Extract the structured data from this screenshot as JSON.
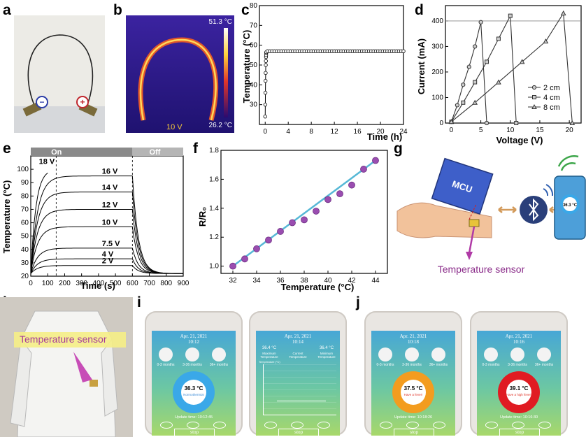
{
  "labels": {
    "a": "a",
    "b": "b",
    "c": "c",
    "d": "d",
    "e": "e",
    "f": "f",
    "g": "g",
    "h": "h",
    "i": "i",
    "j": "j"
  },
  "panel_a": {
    "minus": "−",
    "plus": "+"
  },
  "panel_b": {
    "max_temp": "51.3 °C",
    "min_temp": "26.2 °C",
    "voltage": "10 V"
  },
  "chart_c": {
    "type": "line",
    "xlabel": "Time (h)",
    "ylabel": "Temperature (°C)",
    "xlim": [
      -1,
      24
    ],
    "ylim": [
      20,
      80
    ],
    "xticks": [
      "0",
      "4",
      "8",
      "12",
      "16",
      "20",
      "24"
    ],
    "yticks": [
      "30",
      "40",
      "50",
      "60",
      "70",
      "80"
    ],
    "series": [
      {
        "name": "temperature",
        "x_rise": [
          0.0,
          0.02,
          0.04,
          0.06,
          0.08,
          0.1,
          0.12,
          0.14,
          0.16,
          0.18,
          0.2
        ],
        "y_rise": [
          24,
          30,
          36,
          42,
          46,
          50,
          52,
          54,
          55,
          56,
          56.5
        ],
        "plateau_value": 57
      }
    ]
  },
  "chart_d": {
    "type": "line",
    "xlabel": "Voltage (V)",
    "ylabel": "Current (mA)",
    "xlim": [
      -1,
      22
    ],
    "ylim": [
      0,
      460
    ],
    "xticks": [
      "0",
      "5",
      "10",
      "15",
      "20"
    ],
    "yticks": [
      "0",
      "100",
      "200",
      "300",
      "400"
    ],
    "legend": [
      "2 cm",
      "4 cm",
      "8 cm"
    ],
    "series": [
      {
        "name": "2 cm",
        "x": [
          0,
          1,
          2,
          3,
          4,
          5,
          6
        ],
        "y": [
          5,
          70,
          150,
          220,
          300,
          395,
          0
        ]
      },
      {
        "name": "4 cm",
        "x": [
          0,
          2,
          4,
          6,
          8,
          10,
          11
        ],
        "y": [
          5,
          80,
          160,
          240,
          330,
          420,
          0
        ]
      },
      {
        "name": "8 cm",
        "x": [
          0,
          4,
          8,
          12,
          16,
          19,
          20.5
        ],
        "y": [
          5,
          80,
          160,
          240,
          320,
          430,
          0
        ]
      }
    ]
  },
  "chart_e": {
    "type": "line",
    "xlabel": "Time (s)",
    "ylabel": "Temperature (°C)",
    "xlim": [
      0,
      900
    ],
    "ylim": [
      20,
      110
    ],
    "xticks": [
      "0",
      "100",
      "200",
      "300",
      "400",
      "500",
      "600",
      "700",
      "800",
      "900"
    ],
    "yticks": [
      "20",
      "30",
      "40",
      "50",
      "60",
      "70",
      "80",
      "90",
      "100"
    ],
    "on_label": "On",
    "off_label": "Off",
    "series": [
      {
        "name": "2 V",
        "plateau": 28
      },
      {
        "name": "4 V",
        "plateau": 33
      },
      {
        "name": "7.5 V",
        "plateau": 41
      },
      {
        "name": "10 V",
        "plateau": 57
      },
      {
        "name": "12 V",
        "plateau": 70
      },
      {
        "name": "14 V",
        "plateau": 83
      },
      {
        "name": "16 V",
        "plateau": 95
      },
      {
        "name": "18 V",
        "plateau": 100
      }
    ]
  },
  "chart_f": {
    "type": "scatter",
    "xlabel": "Temperature (°C)",
    "ylabel": "R/R₀",
    "xlim": [
      31,
      45
    ],
    "ylim": [
      0.95,
      1.8
    ],
    "xticks": [
      "32",
      "34",
      "36",
      "38",
      "40",
      "42",
      "44"
    ],
    "yticks": [
      "1.0",
      "1.2",
      "1.4",
      "1.6",
      "1.8"
    ],
    "x": [
      32,
      33,
      34,
      35,
      36,
      37,
      38,
      39,
      40,
      41,
      42,
      43,
      44
    ],
    "y": [
      1.0,
      1.05,
      1.12,
      1.18,
      1.24,
      1.3,
      1.32,
      1.38,
      1.46,
      1.5,
      1.56,
      1.67,
      1.73
    ]
  },
  "panel_g": {
    "mcu": "MCU",
    "sensor": "Temperature sensor",
    "phone_temp": "36.3 °C"
  },
  "panel_h": {
    "sensor": "Temperature sensor"
  },
  "phones": [
    {
      "date": "Apr. 21, 2021",
      "time": "10:12",
      "cat1": "0-3 months",
      "cat2": "3-36 months",
      "cat3": "36+ months",
      "temp": "36.3 °C",
      "status": "Normothermia!",
      "ring": "#3aa8e8",
      "update": "Update time: 10:12:45",
      "stop": "stop"
    },
    {
      "date": "Apr. 21, 2021",
      "time": "10:14",
      "max_val": "36.4 °C",
      "max_lbl": "Maximum Temperature",
      "cur_lbl": "Current Temperature",
      "min_val": "36.4 °C",
      "min_lbl": "Minimum Temperature",
      "axis_lbl": "Temperature (°C)",
      "stop": "stop"
    },
    {
      "date": "Apr. 21, 2021",
      "time": "10:18",
      "cat1": "0-3 months",
      "cat2": "3-36 months",
      "cat3": "36+ months",
      "temp": "37.5 °C",
      "status": "Have a fever!",
      "ring": "#f39c1f",
      "update": "Update time: 10:18:26",
      "stop": "stop"
    },
    {
      "date": "Apr. 21, 2021",
      "time": "10:16",
      "cat1": "0-3 months",
      "cat2": "3-36 months",
      "cat3": "36+ months",
      "temp": "39.1 °C",
      "status": "Have a high fever!",
      "ring": "#e01b22",
      "update": "Update time: 10:16:30",
      "stop": "stop"
    }
  ]
}
